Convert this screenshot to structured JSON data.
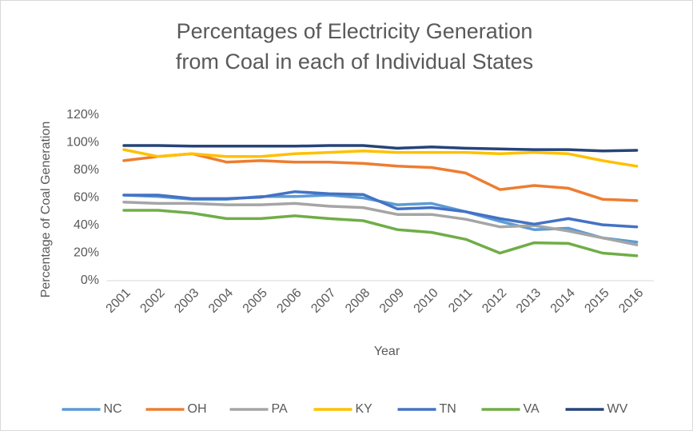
{
  "chart_data": {
    "type": "line",
    "title": "Percentages of Electricity Generation from Coal in each of Individual States",
    "x_label": "Year",
    "y_label": "Percentage of Coal Generation",
    "categories": [
      "2001",
      "2002",
      "2003",
      "2004",
      "2005",
      "2006",
      "2007",
      "2008",
      "2009",
      "2010",
      "2011",
      "2012",
      "2013",
      "2014",
      "2015",
      "2016"
    ],
    "ylim": [
      0,
      120
    ],
    "yticks": [
      {
        "value": 0,
        "label": "0%"
      },
      {
        "value": 20,
        "label": "20%"
      },
      {
        "value": 40,
        "label": "40%"
      },
      {
        "value": 60,
        "label": "60%"
      },
      {
        "value": 80,
        "label": "80%"
      },
      {
        "value": 100,
        "label": "100%"
      },
      {
        "value": 120,
        "label": "120%"
      }
    ],
    "grid": false,
    "legend": "bottom",
    "series": [
      {
        "name": "NC",
        "color": "#5b9bd5",
        "values": [
          62,
          61,
          59,
          59,
          61,
          61,
          62,
          60,
          55,
          56,
          50,
          43,
          37,
          38,
          31,
          28
        ]
      },
      {
        "name": "OH",
        "color": "#ed7d31",
        "values": [
          87,
          90,
          92,
          86,
          87,
          86,
          86,
          85,
          83,
          82,
          78,
          66,
          69,
          67,
          59,
          58
        ]
      },
      {
        "name": "PA",
        "color": "#a5a5a5",
        "values": [
          57,
          56,
          56,
          55,
          55,
          56,
          54,
          53,
          48,
          48,
          44.5,
          39,
          40,
          36,
          31,
          26
        ]
      },
      {
        "name": "KY",
        "color": "#ffc000",
        "values": [
          95,
          90,
          92,
          90,
          90,
          92,
          93,
          94,
          93,
          93,
          93,
          92,
          93,
          92,
          87,
          83
        ]
      },
      {
        "name": "TN",
        "color": "#4472c4",
        "values": [
          62,
          62,
          59.5,
          59.5,
          60.5,
          64.5,
          63,
          62.5,
          52,
          53,
          50,
          45,
          41,
          45,
          40.5,
          39
        ]
      },
      {
        "name": "VA",
        "color": "#70ad47",
        "values": [
          51,
          51,
          49,
          45,
          45,
          47,
          45,
          43.5,
          37,
          35,
          30,
          20,
          27.5,
          27,
          20,
          18
        ]
      },
      {
        "name": "WV",
        "color": "#264478",
        "values": [
          98,
          98,
          97.5,
          97.5,
          97.5,
          97.5,
          98,
          98,
          96,
          97,
          96,
          95.5,
          95,
          95,
          94,
          94.5
        ]
      }
    ]
  }
}
